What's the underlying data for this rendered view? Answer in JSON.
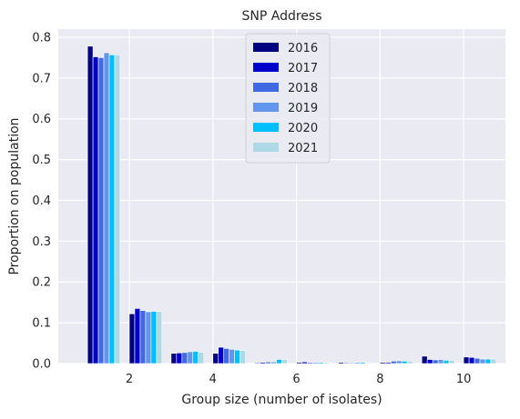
{
  "chart_data": {
    "type": "bar",
    "title": "SNP Address",
    "xlabel": "Group size (number of isolates)",
    "ylabel": "Proportion on population",
    "xlim": [
      0.3,
      11.0
    ],
    "ylim": [
      0,
      0.82
    ],
    "xticks": [
      2,
      4,
      6,
      8,
      10
    ],
    "xtick_labels": [
      "2",
      "4",
      "6",
      "8",
      "10"
    ],
    "yticks": [
      0.0,
      0.1,
      0.2,
      0.3,
      0.4,
      0.5,
      0.6,
      0.7,
      0.8
    ],
    "ytick_labels": [
      "0.0",
      "0.1",
      "0.2",
      "0.3",
      "0.4",
      "0.5",
      "0.6",
      "0.7",
      "0.8"
    ],
    "grid": true,
    "legend_position": "top-center",
    "bar_width": 0.13,
    "x": [
      1,
      2,
      3,
      4,
      5,
      6,
      7,
      8,
      9,
      10
    ],
    "series": [
      {
        "name": "2016",
        "color": "#000080",
        "values": [
          0.778,
          0.122,
          0.025,
          0.025,
          0.002,
          0.003,
          0.003,
          0.003,
          0.018,
          0.016
        ]
      },
      {
        "name": "2017",
        "color": "#0000cd",
        "values": [
          0.752,
          0.135,
          0.026,
          0.04,
          0.003,
          0.004,
          0.002,
          0.003,
          0.01,
          0.015
        ]
      },
      {
        "name": "2018",
        "color": "#4169e1",
        "values": [
          0.75,
          0.13,
          0.027,
          0.037,
          0.004,
          0.003,
          0.002,
          0.006,
          0.009,
          0.013
        ]
      },
      {
        "name": "2019",
        "color": "#6495ed",
        "values": [
          0.762,
          0.127,
          0.029,
          0.035,
          0.004,
          0.003,
          0.003,
          0.007,
          0.01,
          0.011
        ]
      },
      {
        "name": "2020",
        "color": "#00bfff",
        "values": [
          0.757,
          0.128,
          0.03,
          0.033,
          0.01,
          0.003,
          0.003,
          0.006,
          0.008,
          0.011
        ]
      },
      {
        "name": "2021",
        "color": "#add8e6",
        "values": [
          0.757,
          0.128,
          0.028,
          0.032,
          0.01,
          0.003,
          0.002,
          0.006,
          0.008,
          0.011
        ]
      }
    ]
  }
}
